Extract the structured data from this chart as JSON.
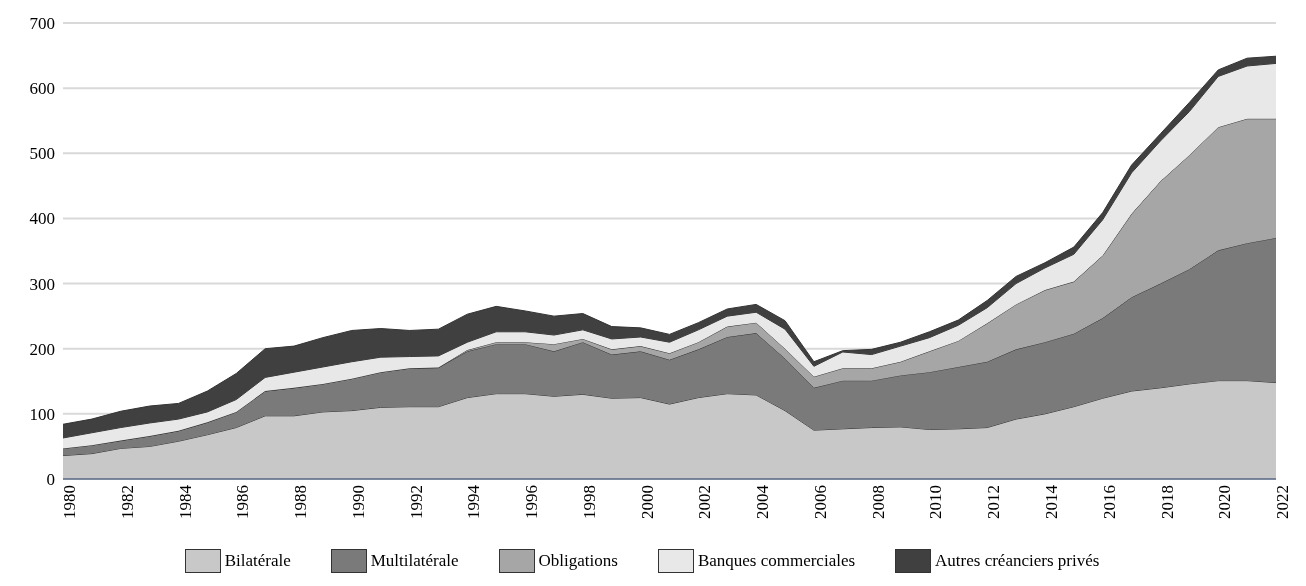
{
  "chart_data": {
    "type": "area",
    "stacked": true,
    "x": [
      1980,
      1981,
      1982,
      1983,
      1984,
      1985,
      1986,
      1987,
      1988,
      1989,
      1990,
      1991,
      1992,
      1993,
      1994,
      1995,
      1996,
      1997,
      1998,
      1999,
      2000,
      2001,
      2002,
      2003,
      2004,
      2005,
      2006,
      2007,
      2008,
      2009,
      2010,
      2011,
      2012,
      2013,
      2014,
      2015,
      2016,
      2017,
      2018,
      2019,
      2020,
      2021,
      2022
    ],
    "series": [
      {
        "name": "Bilatérale",
        "color": "#c8c8c8",
        "values": [
          36,
          39,
          47,
          50,
          58,
          68,
          79,
          97,
          97,
          103,
          105,
          110,
          111,
          111,
          125,
          131,
          131,
          127,
          130,
          124,
          125,
          115,
          125,
          131,
          129,
          105,
          75,
          77,
          79,
          80,
          76,
          77,
          79,
          92,
          100,
          111,
          124,
          135,
          140,
          146,
          151,
          151,
          148
        ]
      },
      {
        "name": "Multilatérale",
        "color": "#7a7a7a",
        "values": [
          11,
          13,
          12,
          16,
          16,
          19,
          24,
          38,
          43,
          43,
          49,
          54,
          59,
          60,
          71,
          76,
          76,
          69,
          80,
          67,
          71,
          68,
          74,
          87,
          95,
          80,
          65,
          74,
          72,
          79,
          88,
          95,
          101,
          107,
          110,
          112,
          123,
          144,
          160,
          176,
          200,
          211,
          222
        ]
      },
      {
        "name": "Obligations",
        "color": "#a6a6a6",
        "values": [
          0,
          0,
          0,
          0,
          0,
          0,
          0,
          0,
          0,
          0,
          0,
          0,
          0,
          0,
          2,
          3,
          3,
          11,
          5,
          8,
          8,
          10,
          11,
          16,
          16,
          15,
          17,
          19,
          19,
          21,
          32,
          40,
          59,
          69,
          80,
          80,
          96,
          128,
          157,
          175,
          189,
          191,
          183
        ]
      },
      {
        "name": "Banques commerciales",
        "color": "#e8e8e8",
        "values": [
          16,
          19,
          20,
          20,
          18,
          16,
          19,
          21,
          24,
          26,
          26,
          23,
          18,
          18,
          12,
          16,
          16,
          14,
          14,
          16,
          14,
          17,
          19,
          16,
          16,
          30,
          16,
          25,
          21,
          24,
          21,
          24,
          24,
          32,
          34,
          42,
          55,
          63,
          62,
          67,
          78,
          81,
          85
        ]
      },
      {
        "name": "Autres créanciers privés",
        "color": "#404040",
        "values": [
          21,
          21,
          25,
          26,
          24,
          32,
          40,
          44,
          40,
          45,
          48,
          44,
          40,
          41,
          43,
          39,
          32,
          29,
          25,
          19,
          14,
          12,
          11,
          11,
          12,
          13,
          7,
          2,
          8,
          6,
          9,
          8,
          11,
          11,
          8,
          11,
          11,
          12,
          11,
          14,
          10,
          12,
          11
        ]
      }
    ],
    "xlim": [
      1980,
      2022
    ],
    "xticks": [
      1980,
      1982,
      1984,
      1986,
      1988,
      1990,
      1992,
      1994,
      1996,
      1998,
      2000,
      2002,
      2004,
      2006,
      2008,
      2010,
      2012,
      2014,
      2016,
      2018,
      2020,
      2022
    ],
    "ylim": [
      0,
      700
    ],
    "yticks": [
      0,
      100,
      200,
      300,
      400,
      500,
      600,
      700
    ],
    "grid": "y",
    "legend": "bottom"
  }
}
